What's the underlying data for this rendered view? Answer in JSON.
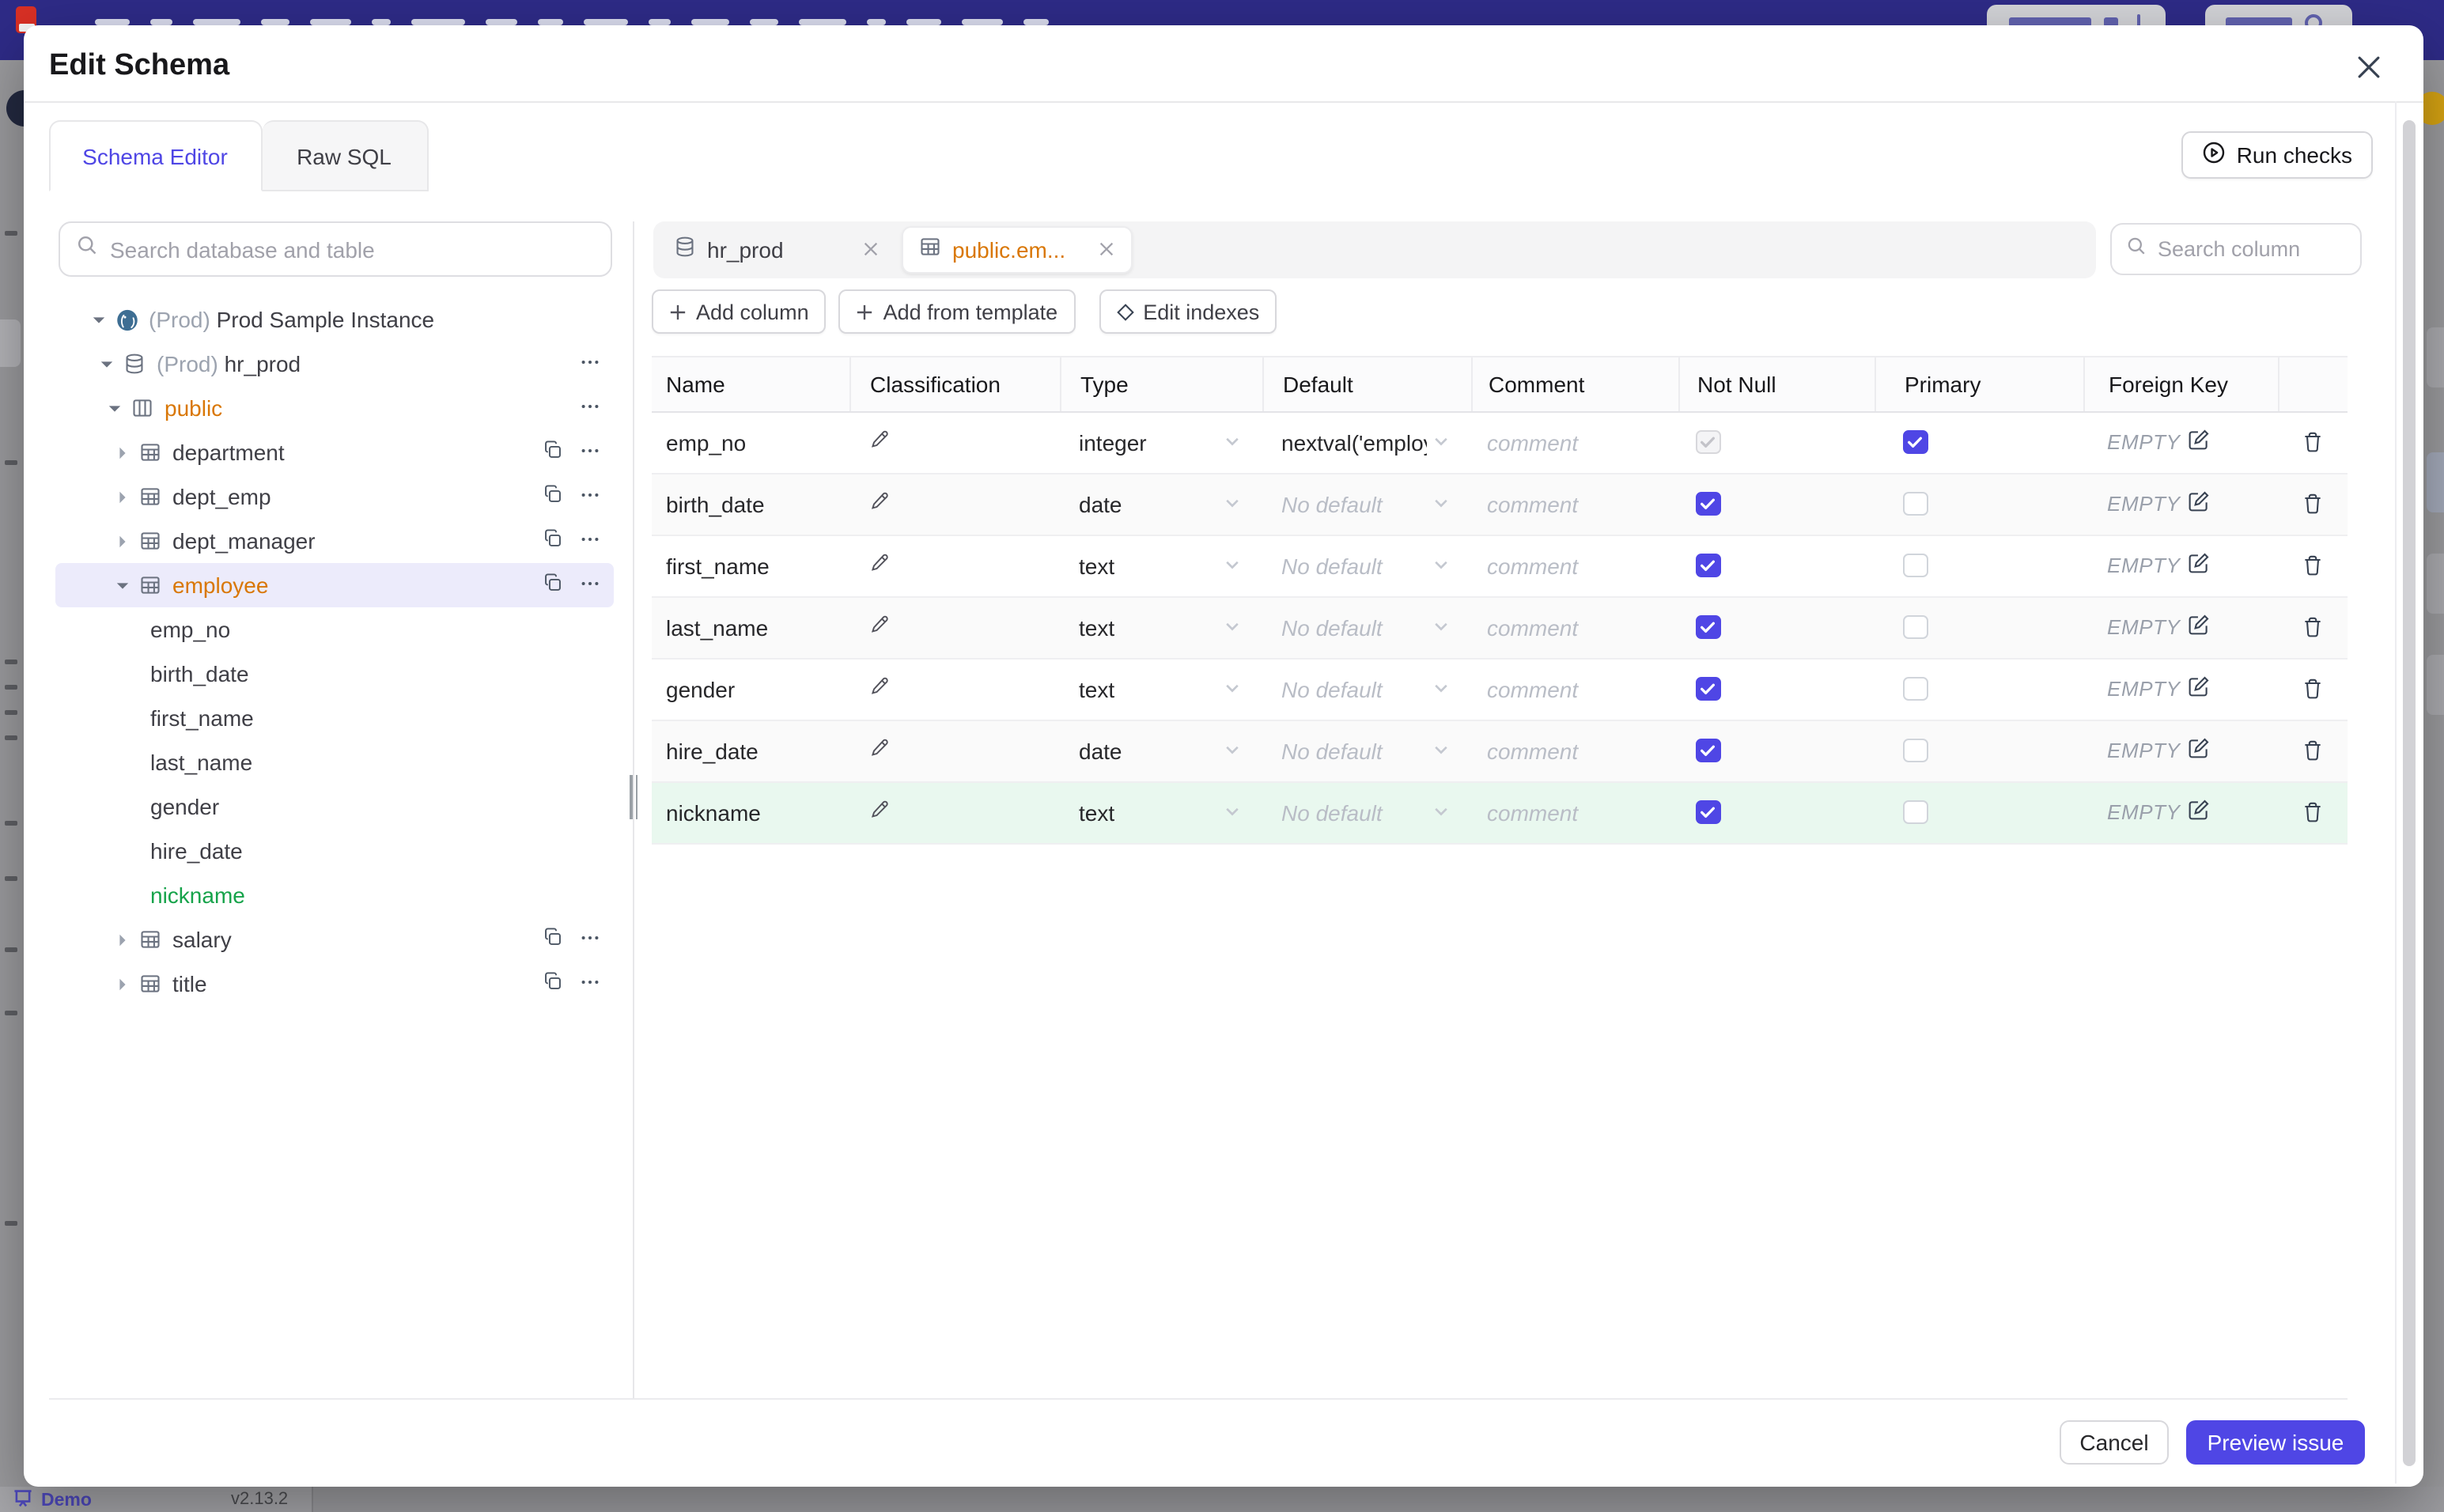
{
  "backdrop": {
    "demo_label": "Demo",
    "version": "v2.13.2"
  },
  "modal": {
    "title": "Edit Schema",
    "run_checks_label": "Run checks"
  },
  "tabs": [
    {
      "label": "Schema Editor",
      "active": true
    },
    {
      "label": "Raw SQL",
      "active": false
    }
  ],
  "sidebar": {
    "search_placeholder": "Search database and table",
    "tree": [
      {
        "kind": "instance",
        "caret": "down",
        "icon": "postgres",
        "prefix": "(Prod) ",
        "label": "Prod Sample Instance",
        "level": 0
      },
      {
        "kind": "database",
        "caret": "down",
        "icon": "database",
        "prefix": "(Prod) ",
        "label": "hr_prod",
        "level": 1,
        "menu": true
      },
      {
        "kind": "schema",
        "caret": "down",
        "icon": "schema",
        "label": "public",
        "level": 2,
        "menu": true,
        "color": "amber"
      },
      {
        "kind": "table",
        "caret": "right",
        "icon": "table",
        "label": "department",
        "level": 3,
        "copy": true,
        "menu": true
      },
      {
        "kind": "table",
        "caret": "right",
        "icon": "table",
        "label": "dept_emp",
        "level": 3,
        "copy": true,
        "menu": true
      },
      {
        "kind": "table",
        "caret": "right",
        "icon": "table",
        "label": "dept_manager",
        "level": 3,
        "copy": true,
        "menu": true
      },
      {
        "kind": "table",
        "caret": "down",
        "icon": "table",
        "label": "employee",
        "level": 3,
        "copy": true,
        "menu": true,
        "color": "amber",
        "selected": true
      },
      {
        "kind": "column",
        "label": "emp_no",
        "level": 4
      },
      {
        "kind": "column",
        "label": "birth_date",
        "level": 4
      },
      {
        "kind": "column",
        "label": "first_name",
        "level": 4
      },
      {
        "kind": "column",
        "label": "last_name",
        "level": 4
      },
      {
        "kind": "column",
        "label": "gender",
        "level": 4
      },
      {
        "kind": "column",
        "label": "hire_date",
        "level": 4
      },
      {
        "kind": "column",
        "label": "nickname",
        "level": 4,
        "color": "green"
      },
      {
        "kind": "table",
        "caret": "right",
        "icon": "table",
        "label": "salary",
        "level": 3,
        "copy": true,
        "menu": true
      },
      {
        "kind": "table",
        "caret": "right",
        "icon": "table",
        "label": "title",
        "level": 3,
        "copy": true,
        "menu": true
      }
    ]
  },
  "editor": {
    "chips": [
      {
        "icon": "database",
        "label": "hr_prod",
        "active": false
      },
      {
        "icon": "table",
        "label": "public.em...",
        "active": true
      }
    ],
    "column_search_placeholder": "Search column",
    "actions": [
      {
        "icon": "plus",
        "label": "Add column"
      },
      {
        "icon": "plus",
        "label": "Add from template"
      },
      {
        "icon": "diamond",
        "label": "Edit indexes"
      }
    ],
    "table": {
      "headers": [
        "Name",
        "Classification",
        "Type",
        "Default",
        "Comment",
        "Not Null",
        "Primary",
        "Foreign Key"
      ],
      "placeholders": {
        "default": "No default",
        "comment": "comment",
        "foreign_key": "EMPTY"
      },
      "rows": [
        {
          "name": "emp_no",
          "type": "integer",
          "default": "nextval('employ",
          "not_null": "checked-disabled",
          "primary": true,
          "highlight": false
        },
        {
          "name": "birth_date",
          "type": "date",
          "default": null,
          "not_null": "checked",
          "primary": false,
          "highlight": false
        },
        {
          "name": "first_name",
          "type": "text",
          "default": null,
          "not_null": "checked",
          "primary": false,
          "highlight": false
        },
        {
          "name": "last_name",
          "type": "text",
          "default": null,
          "not_null": "checked",
          "primary": false,
          "highlight": false
        },
        {
          "name": "gender",
          "type": "text",
          "default": null,
          "not_null": "checked",
          "primary": false,
          "highlight": false
        },
        {
          "name": "hire_date",
          "type": "date",
          "default": null,
          "not_null": "checked",
          "primary": false,
          "highlight": false
        },
        {
          "name": "nickname",
          "type": "text",
          "default": null,
          "not_null": "checked",
          "primary": false,
          "highlight": true
        }
      ]
    }
  },
  "footer": {
    "cancel_label": "Cancel",
    "submit_label": "Preview issue"
  },
  "colors": {
    "accent": "#4f46e5",
    "amber": "#d97706",
    "green": "#16a34a",
    "green_row_bg": "#e9f8ef",
    "topbar": "#2e2b87",
    "selected_bg": "#ecebfb"
  }
}
